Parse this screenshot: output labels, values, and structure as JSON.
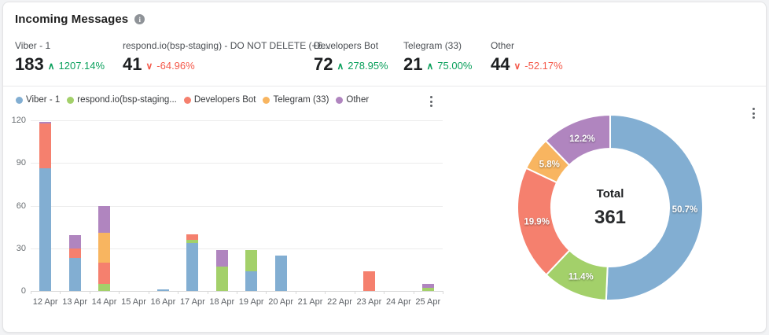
{
  "header": {
    "title": "Incoming Messages",
    "info_glyph": "i"
  },
  "stats": [
    {
      "label": "Viber - 1",
      "value": "183",
      "change": "1207.14%",
      "direction": "up"
    },
    {
      "label": "respond.io(bsp-staging) - DO NOT DELETE (+6...",
      "value": "41",
      "change": "-64.96%",
      "direction": "down"
    },
    {
      "label": "Developers Bot",
      "value": "72",
      "change": "278.95%",
      "direction": "up"
    },
    {
      "label": "Telegram (33)",
      "value": "21",
      "change": "75.00%",
      "direction": "up"
    },
    {
      "label": "Other",
      "value": "44",
      "change": "-52.17%",
      "direction": "down"
    }
  ],
  "colors": {
    "positive": "#0aa05c",
    "negative": "#f4594a",
    "series": [
      "#82aed2",
      "#a3d06a",
      "#f5806e",
      "#f8b560",
      "#b085bf"
    ]
  },
  "chart_data": [
    {
      "type": "bar",
      "stacked": true,
      "title": "",
      "xlabel": "",
      "ylabel": "",
      "ylim": [
        0,
        120
      ],
      "y_ticks": [
        0,
        30,
        60,
        90,
        120
      ],
      "grid": true,
      "legend_position": "top",
      "categories": [
        "12 Apr",
        "13 Apr",
        "14 Apr",
        "15 Apr",
        "16 Apr",
        "17 Apr",
        "18 Apr",
        "19 Apr",
        "20 Apr",
        "21 Apr",
        "22 Apr",
        "23 Apr",
        "24 Apr",
        "25 Apr"
      ],
      "series": [
        {
          "name": "Viber - 1",
          "color": "#82aed2",
          "values": [
            86,
            23,
            0,
            0,
            1,
            34,
            0,
            14,
            25,
            0,
            0,
            0,
            0,
            0
          ]
        },
        {
          "name": "respond.io(bsp-staging...",
          "color": "#a3d06a",
          "values": [
            0,
            0,
            5,
            0,
            0,
            2,
            17,
            15,
            0,
            0,
            0,
            0,
            0,
            2
          ]
        },
        {
          "name": "Developers Bot",
          "color": "#f5806e",
          "values": [
            32,
            7,
            15,
            0,
            0,
            4,
            0,
            0,
            0,
            0,
            0,
            14,
            0,
            0
          ]
        },
        {
          "name": "Telegram (33)",
          "color": "#f8b560",
          "values": [
            0,
            0,
            21,
            0,
            0,
            0,
            0,
            0,
            0,
            0,
            0,
            0,
            0,
            0
          ]
        },
        {
          "name": "Other",
          "color": "#b085bf",
          "values": [
            1,
            9,
            19,
            0,
            0,
            0,
            12,
            0,
            0,
            0,
            0,
            0,
            0,
            3
          ]
        }
      ]
    },
    {
      "type": "pie",
      "donut": true,
      "center_label": "Total",
      "center_value": "361",
      "slices": [
        {
          "name": "Viber - 1",
          "value": 183,
          "pct": 50.7,
          "color": "#82aed2"
        },
        {
          "name": "respond.io(bsp-staging...",
          "value": 41,
          "pct": 11.4,
          "color": "#a3d06a"
        },
        {
          "name": "Developers Bot",
          "value": 72,
          "pct": 19.9,
          "color": "#f5806e"
        },
        {
          "name": "Telegram (33)",
          "value": 21,
          "pct": 5.8,
          "color": "#f8b560"
        },
        {
          "name": "Other",
          "value": 44,
          "pct": 12.2,
          "color": "#b085bf"
        }
      ]
    }
  ]
}
